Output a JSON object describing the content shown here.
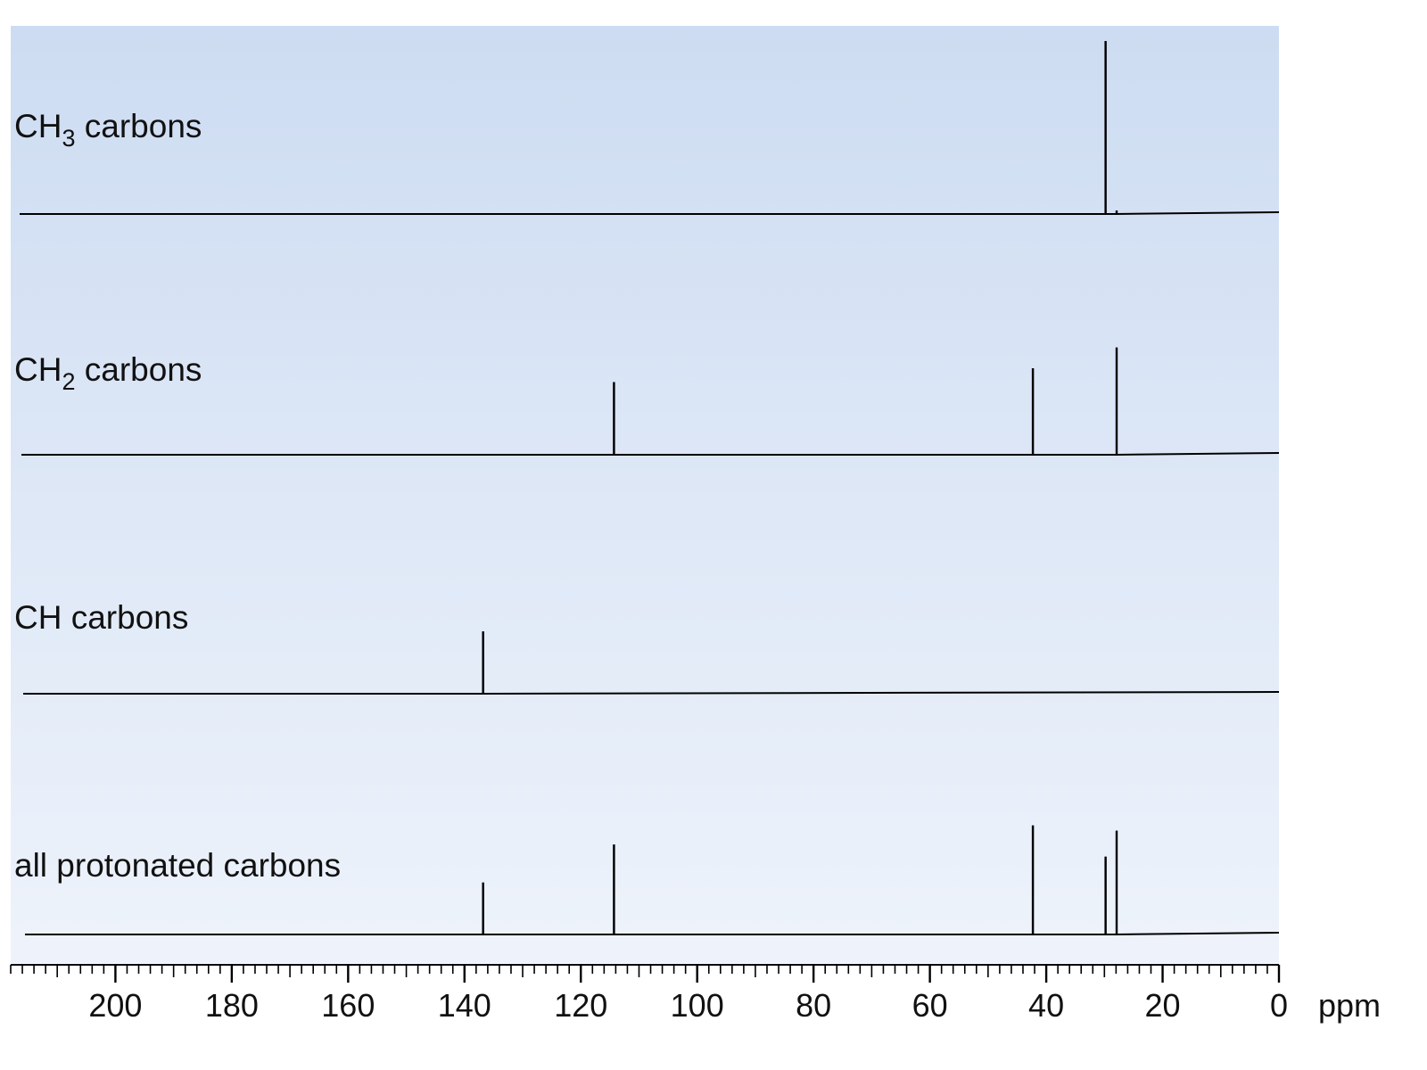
{
  "chart_data": {
    "type": "line",
    "title": "",
    "xlabel": "ppm",
    "ylabel": "",
    "xlim": [
      218,
      0
    ],
    "x_ticks": [
      200,
      180,
      160,
      140,
      120,
      100,
      80,
      60,
      40,
      20,
      0
    ],
    "x_tick_labels": [
      "200",
      "180",
      "160",
      "140",
      "120",
      "100",
      "80",
      "60",
      "40",
      "20",
      "0"
    ],
    "grid": false,
    "legend": "none",
    "background_gradient": [
      "#cddcf2",
      "#eef3fb"
    ],
    "line_color": "#000000",
    "series": [
      {
        "name": "CH3 carbons",
        "label_main": "CH",
        "label_sub": "3",
        "label_rest": " carbons",
        "peaks": [
          {
            "ppm": 29.8,
            "height": 1.0
          },
          {
            "ppm": 27.9,
            "height": 0.02
          }
        ]
      },
      {
        "name": "CH2 carbons",
        "label_main": "CH",
        "label_sub": "2",
        "label_rest": " carbons",
        "peaks": [
          {
            "ppm": 114.3,
            "height": 0.42
          },
          {
            "ppm": 42.3,
            "height": 0.5
          },
          {
            "ppm": 27.9,
            "height": 0.62
          }
        ]
      },
      {
        "name": "CH carbons",
        "label_main": "CH carbons",
        "label_sub": "",
        "label_rest": "",
        "peaks": [
          {
            "ppm": 136.8,
            "height": 0.36
          }
        ]
      },
      {
        "name": "all protonated carbons",
        "label_main": "all protonated carbons",
        "label_sub": "",
        "label_rest": "",
        "peaks": [
          {
            "ppm": 136.8,
            "height": 0.3
          },
          {
            "ppm": 114.3,
            "height": 0.52
          },
          {
            "ppm": 42.3,
            "height": 0.63
          },
          {
            "ppm": 29.8,
            "height": 0.45
          },
          {
            "ppm": 27.9,
            "height": 0.6
          }
        ]
      }
    ]
  }
}
